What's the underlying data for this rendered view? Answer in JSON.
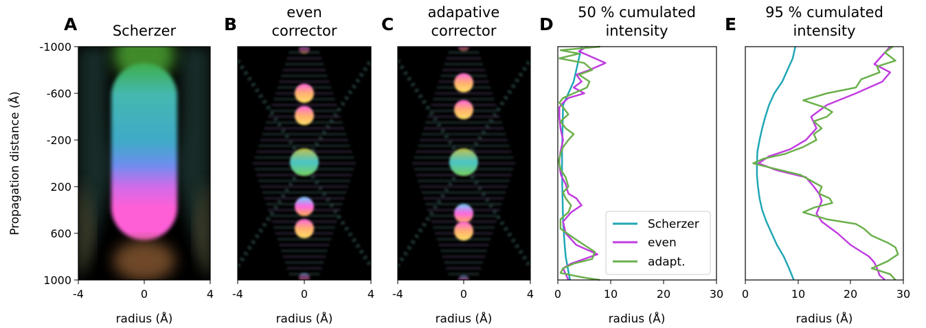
{
  "panels": [
    {
      "letter": "A",
      "title": [
        "Scherzer"
      ],
      "xlabel": "radius (Å)",
      "ylabel": "Propagation distance (Å)",
      "xticks": [
        "-4",
        "0",
        "4"
      ],
      "yticks": [
        "-1000",
        "-600",
        "-200",
        "200",
        "600",
        "1000"
      ]
    },
    {
      "letter": "B",
      "title": [
        "even",
        "corrector"
      ],
      "xlabel": "radius (Å)",
      "xticks": [
        "-4",
        "0",
        "4"
      ]
    },
    {
      "letter": "C",
      "title": [
        "adapative",
        "corrector"
      ],
      "xlabel": "radius (Å)",
      "xticks": [
        "-4",
        "0",
        "4"
      ]
    },
    {
      "letter": "D",
      "title": [
        "50 % cumulated",
        "intensity"
      ],
      "xlabel": "radius (Å)",
      "xticks": [
        "0",
        "10",
        "20",
        "30"
      ]
    },
    {
      "letter": "E",
      "title": [
        "95 % cumulated",
        "intensity"
      ],
      "xlabel": "radius (Å)",
      "xticks": [
        "0",
        "10",
        "20",
        "30"
      ]
    }
  ],
  "legend": {
    "placement": "lower-right",
    "entries": [
      {
        "label": "Scherzer",
        "color": "#1fa6b5"
      },
      {
        "label": "even",
        "color": "#c03ce0"
      },
      {
        "label": "adapt.",
        "color": "#6ab04c"
      }
    ]
  },
  "chart_data": [
    {
      "type": "heatmap",
      "panel": "A",
      "title": "Scherzer",
      "xlabel": "radius (Å)",
      "ylabel": "Propagation distance (Å)",
      "xlim": [
        -4,
        4
      ],
      "ylim": [
        -1000,
        1000
      ],
      "y_inverted": true,
      "colors": {
        "negative_z": "#3bb0b8",
        "positive_z": "#ff63d7",
        "top": "#3db43d"
      }
    },
    {
      "type": "heatmap",
      "panel": "B",
      "title": "even corrector",
      "xlabel": "radius (Å)",
      "xlim": [
        -4,
        4
      ],
      "ylim": [
        -1000,
        1000
      ],
      "spots_z": [
        -980,
        -600,
        -410,
        -10,
        370,
        560,
        980
      ]
    },
    {
      "type": "heatmap",
      "panel": "C",
      "title": "adapative corrector",
      "xlabel": "radius (Å)",
      "xlim": [
        -4,
        4
      ],
      "ylim": [
        -1000,
        1000
      ],
      "spots_z": [
        -1000,
        -690,
        -460,
        -10,
        430,
        580,
        1000
      ]
    },
    {
      "type": "line",
      "panel": "D",
      "title": "50 % cumulated intensity",
      "xlabel": "radius (Å)",
      "xlim": [
        0,
        30
      ],
      "ylim": [
        -1000,
        1000
      ],
      "y_inverted": true,
      "series": [
        {
          "name": "Scherzer",
          "color": "#1fa6b5",
          "z": [
            -1000,
            -700,
            -500,
            -300,
            -100,
            0,
            100,
            300,
            500,
            700,
            800,
            900,
            1000
          ],
          "r": [
            4.5,
            3.0,
            1.0,
            0.9,
            0.8,
            0.8,
            0.8,
            0.9,
            1.0,
            1.3,
            1.5,
            1.9,
            2.3
          ]
        },
        {
          "name": "even",
          "color": "#c03ce0",
          "z": [
            -1000,
            -960,
            -900,
            -860,
            -800,
            -760,
            -700,
            -650,
            -600,
            -560,
            -520,
            -480,
            -400,
            -300,
            -200,
            -100,
            -30,
            0,
            50,
            100,
            180,
            260,
            300,
            360,
            420,
            500,
            600,
            700,
            780,
            820,
            860,
            900,
            950,
            1000
          ],
          "r": [
            5.5,
            4.0,
            7.0,
            9.0,
            6.0,
            3.5,
            4.5,
            3.0,
            5.0,
            2.0,
            1.0,
            0.3,
            0.3,
            0.5,
            1.0,
            0.5,
            0.3,
            0.3,
            0.4,
            0.6,
            1.5,
            2.0,
            3.5,
            4.5,
            2.5,
            1.0,
            1.5,
            3.5,
            7.5,
            5.0,
            2.5,
            1.0,
            1.5,
            2.0
          ]
        },
        {
          "name": "adapt.",
          "color": "#6ab04c",
          "z": [
            -1000,
            -970,
            -940,
            -900,
            -860,
            -800,
            -760,
            -700,
            -650,
            -600,
            -560,
            -520,
            -480,
            -420,
            -360,
            -300,
            -250,
            -200,
            -140,
            -80,
            -20,
            0,
            50,
            120,
            200,
            250,
            300,
            360,
            420,
            480,
            560,
            640,
            700,
            760,
            820,
            860,
            900,
            940,
            980,
            1000
          ],
          "r": [
            8.0,
            0.5,
            4.0,
            0.3,
            5.0,
            6.5,
            4.0,
            6.0,
            5.5,
            3.0,
            1.0,
            0.3,
            1.0,
            2.0,
            0.5,
            1.5,
            3.0,
            2.0,
            1.0,
            0.5,
            0.2,
            0.3,
            0.5,
            1.5,
            2.0,
            1.0,
            1.5,
            2.5,
            2.0,
            0.5,
            0.5,
            3.0,
            5.0,
            7.0,
            6.5,
            3.0,
            1.0,
            0.5,
            5.0,
            8.0
          ]
        }
      ]
    },
    {
      "type": "line",
      "panel": "E",
      "title": "95 % cumulated intensity",
      "xlabel": "radius (Å)",
      "xlim": [
        0,
        30
      ],
      "ylim": [
        -1000,
        1000
      ],
      "y_inverted": true,
      "series": [
        {
          "name": "Scherzer",
          "color": "#1fa6b5",
          "z": [
            -1000,
            -900,
            -800,
            -700,
            -600,
            -500,
            -400,
            -300,
            -200,
            -100,
            0,
            100,
            200,
            300,
            400,
            500,
            600,
            700,
            800,
            900,
            1000
          ],
          "r": [
            9.5,
            9.0,
            8.0,
            7.0,
            5.5,
            4.5,
            3.8,
            3.2,
            2.7,
            2.3,
            2.2,
            2.2,
            2.4,
            2.7,
            3.2,
            4.0,
            5.0,
            6.0,
            7.3,
            8.3,
            9.2
          ]
        },
        {
          "name": "even",
          "color": "#c03ce0",
          "z": [
            -1000,
            -900,
            -850,
            -780,
            -700,
            -600,
            -500,
            -400,
            -300,
            -200,
            -120,
            -60,
            0,
            60,
            120,
            200,
            260,
            320,
            380,
            430,
            500,
            600,
            700,
            800,
            850,
            900,
            960,
            1000
          ],
          "r": [
            27.5,
            25.5,
            24.5,
            27.5,
            26.0,
            21.0,
            15.5,
            12.5,
            13.5,
            11.5,
            8.5,
            4.5,
            2.5,
            6.0,
            11.5,
            13.0,
            14.0,
            14.5,
            14.0,
            13.5,
            14.5,
            17.5,
            20.0,
            23.5,
            24.5,
            25.0,
            25.5,
            26.5
          ]
        },
        {
          "name": "adapt.",
          "color": "#6ab04c",
          "z": [
            -1000,
            -950,
            -880,
            -830,
            -780,
            -720,
            -650,
            -600,
            -540,
            -480,
            -440,
            -400,
            -360,
            -300,
            -250,
            -200,
            -140,
            -80,
            -40,
            0,
            40,
            100,
            150,
            200,
            260,
            300,
            340,
            380,
            420,
            480,
            520,
            560,
            620,
            680,
            720,
            780,
            840,
            900,
            950,
            1000
          ],
          "r": [
            28.0,
            26.5,
            28.5,
            25.0,
            25.5,
            22.0,
            21.0,
            15.5,
            11.0,
            15.0,
            16.5,
            15.5,
            13.0,
            14.5,
            13.0,
            13.5,
            11.0,
            7.5,
            3.5,
            1.5,
            5.0,
            10.5,
            12.5,
            14.5,
            14.0,
            16.0,
            16.5,
            13.0,
            11.0,
            15.5,
            21.0,
            22.5,
            24.0,
            27.0,
            28.5,
            29.0,
            27.0,
            24.0,
            27.5,
            28.5
          ]
        }
      ]
    }
  ]
}
